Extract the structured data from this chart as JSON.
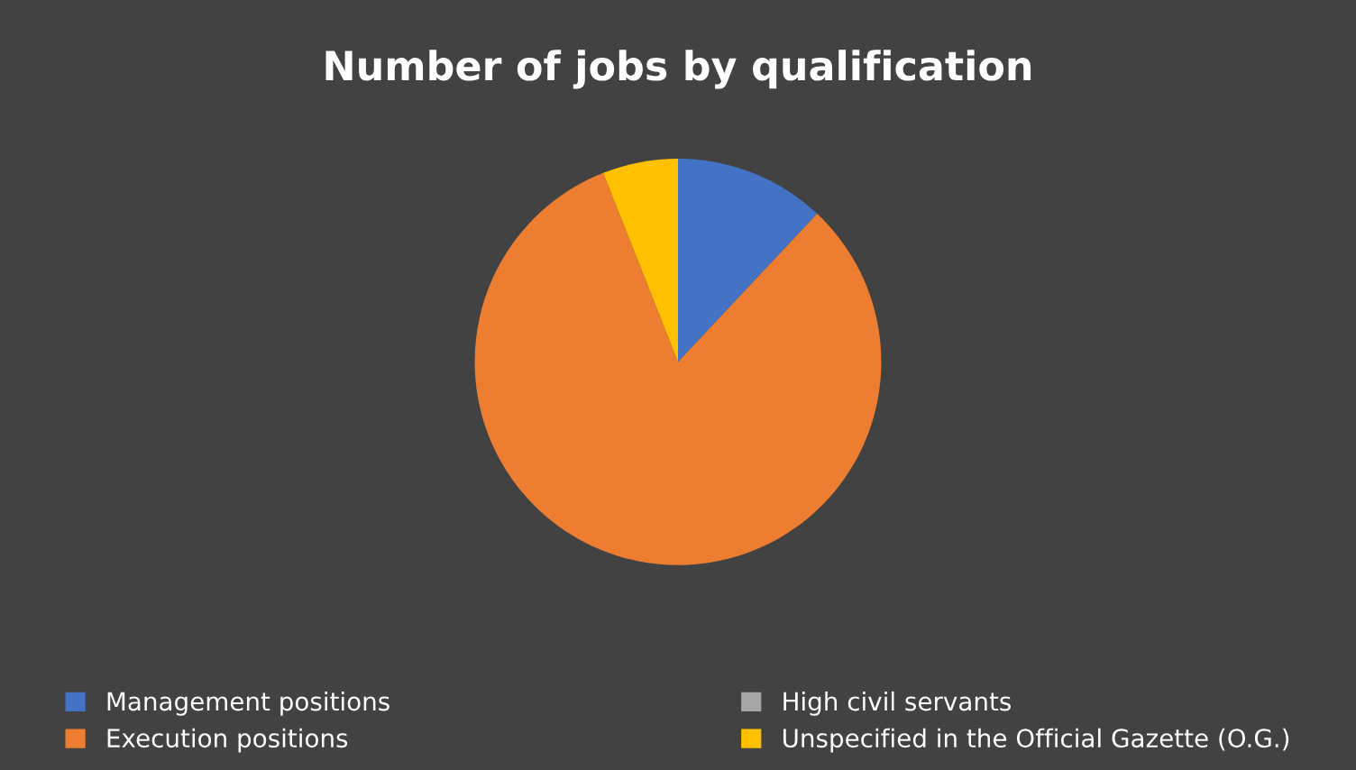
{
  "chart_data": {
    "type": "pie",
    "title": "Number of jobs by qualification",
    "categories": [
      "Management positions",
      "Execution positions",
      "High civil servants",
      "Unspecified in the Official Gazette (O.G.)"
    ],
    "values": [
      12,
      82,
      0,
      6
    ],
    "colors": [
      "#4472c4",
      "#ed7d31",
      "#a5a5a5",
      "#ffc000"
    ],
    "legend": "bottom"
  }
}
